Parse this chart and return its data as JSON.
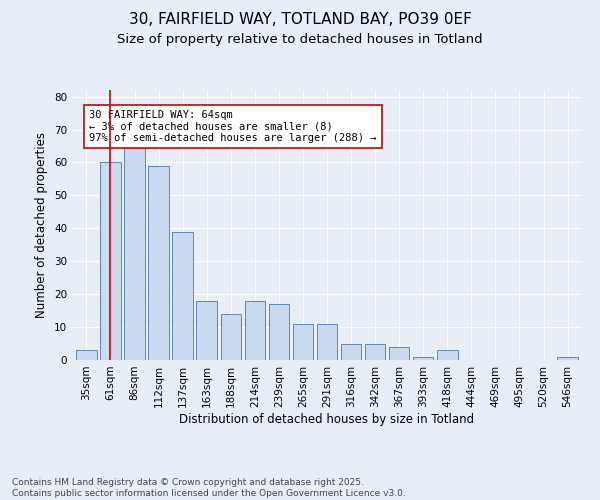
{
  "title_line1": "30, FAIRFIELD WAY, TOTLAND BAY, PO39 0EF",
  "title_line2": "Size of property relative to detached houses in Totland",
  "xlabel": "Distribution of detached houses by size in Totland",
  "ylabel": "Number of detached properties",
  "categories": [
    "35sqm",
    "61sqm",
    "86sqm",
    "112sqm",
    "137sqm",
    "163sqm",
    "188sqm",
    "214sqm",
    "239sqm",
    "265sqm",
    "291sqm",
    "316sqm",
    "342sqm",
    "367sqm",
    "393sqm",
    "418sqm",
    "444sqm",
    "469sqm",
    "495sqm",
    "520sqm",
    "546sqm"
  ],
  "values": [
    3,
    60,
    65,
    59,
    39,
    18,
    14,
    18,
    17,
    11,
    11,
    5,
    5,
    4,
    1,
    3,
    0,
    0,
    0,
    0,
    1
  ],
  "bar_color": "#c9d9ef",
  "bar_edge_color": "#5f86b3",
  "highlight_bar_index": 1,
  "highlight_line_color": "#cc0000",
  "ylim": [
    0,
    82
  ],
  "yticks": [
    0,
    10,
    20,
    30,
    40,
    50,
    60,
    70,
    80
  ],
  "annotation_text": "30 FAIRFIELD WAY: 64sqm\n← 3% of detached houses are smaller (8)\n97% of semi-detached houses are larger (288) →",
  "annotation_box_color": "#ffffff",
  "annotation_box_edge": "#cc0000",
  "background_color": "#e8eef5",
  "plot_bg_color": "#e8eef5",
  "footer_text": "Contains HM Land Registry data © Crown copyright and database right 2025.\nContains public sector information licensed under the Open Government Licence v3.0.",
  "title_fontsize": 11,
  "subtitle_fontsize": 9.5,
  "axis_label_fontsize": 8.5,
  "tick_fontsize": 7.5,
  "annotation_fontsize": 7.5,
  "footer_fontsize": 6.5
}
